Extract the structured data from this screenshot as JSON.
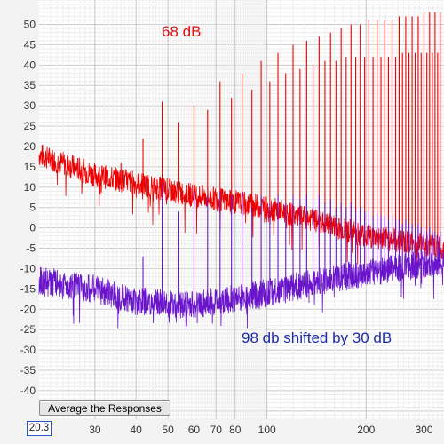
{
  "chart_data": {
    "type": "line",
    "x_scale": "log",
    "xlim": [
      20.3,
      345
    ],
    "ylim": [
      -47,
      56
    ],
    "grid": true,
    "y_ticks": [
      50,
      45,
      40,
      35,
      30,
      25,
      20,
      15,
      10,
      5,
      0,
      -5,
      -10,
      -15,
      -20,
      -25,
      -30,
      -35,
      -40
    ],
    "x_ticks": [
      "30",
      "40",
      "50",
      "60",
      "70",
      "80",
      "100",
      "200",
      "300"
    ],
    "x_tick_values": [
      30,
      40,
      50,
      60,
      70,
      80,
      100,
      200,
      300
    ],
    "x_start_label": "20.3",
    "annotations": {
      "red": "68 dB",
      "blue": "98 db shifted by 30 dB"
    },
    "series": [
      {
        "color": "#ee0000",
        "noise_floor": [
          [
            20.3,
            18
          ],
          [
            30,
            13
          ],
          [
            40,
            11
          ],
          [
            60,
            8
          ],
          [
            100,
            5
          ],
          [
            150,
            1
          ],
          [
            200,
            -2
          ],
          [
            300,
            -4
          ],
          [
            345,
            -5
          ]
        ],
        "peaks": [
          [
            36,
            16
          ],
          [
            42,
            22
          ],
          [
            48,
            31
          ],
          [
            54,
            26
          ],
          [
            60,
            30
          ],
          [
            66,
            29
          ],
          [
            72,
            36
          ],
          [
            78,
            32
          ],
          [
            84,
            38
          ],
          [
            90,
            34
          ],
          [
            96,
            41
          ],
          [
            102,
            36
          ],
          [
            108,
            43
          ],
          [
            114,
            38
          ],
          [
            120,
            45
          ],
          [
            126,
            39
          ],
          [
            132,
            46
          ],
          [
            138,
            40
          ],
          [
            144,
            47
          ],
          [
            150,
            41
          ],
          [
            156,
            48
          ],
          [
            162,
            41
          ],
          [
            168,
            49
          ],
          [
            174,
            42
          ],
          [
            180,
            50
          ],
          [
            186,
            42
          ],
          [
            192,
            50
          ],
          [
            198,
            42
          ],
          [
            204,
            51
          ],
          [
            210,
            42
          ],
          [
            216,
            51
          ],
          [
            222,
            42
          ],
          [
            228,
            51
          ],
          [
            234,
            42
          ],
          [
            240,
            51
          ],
          [
            246,
            42
          ],
          [
            252,
            52
          ],
          [
            258,
            43
          ],
          [
            264,
            52
          ],
          [
            270,
            43
          ],
          [
            276,
            52
          ],
          [
            282,
            43
          ],
          [
            288,
            52
          ],
          [
            294,
            43
          ],
          [
            300,
            53
          ],
          [
            306,
            43
          ],
          [
            312,
            53
          ],
          [
            318,
            43
          ],
          [
            324,
            53
          ],
          [
            330,
            43
          ],
          [
            336,
            53
          ]
        ]
      },
      {
        "color": "#6a14cc",
        "noise_floor": [
          [
            20.3,
            -13
          ],
          [
            30,
            -15
          ],
          [
            40,
            -18
          ],
          [
            60,
            -19
          ],
          [
            100,
            -16
          ],
          [
            150,
            -13
          ],
          [
            200,
            -11
          ],
          [
            300,
            -9
          ],
          [
            345,
            -8
          ]
        ],
        "peaks": [
          [
            42,
            -7
          ],
          [
            48,
            11
          ],
          [
            54,
            4
          ],
          [
            60,
            9
          ],
          [
            66,
            8
          ],
          [
            72,
            9
          ],
          [
            78,
            8
          ],
          [
            84,
            9
          ],
          [
            90,
            5
          ],
          [
            96,
            8
          ],
          [
            102,
            6
          ],
          [
            108,
            8
          ],
          [
            114,
            6
          ],
          [
            120,
            8
          ],
          [
            126,
            7
          ],
          [
            132,
            8
          ],
          [
            138,
            7
          ],
          [
            144,
            8
          ],
          [
            150,
            6
          ],
          [
            156,
            7
          ],
          [
            162,
            5
          ],
          [
            168,
            6
          ],
          [
            174,
            5
          ],
          [
            180,
            6
          ],
          [
            186,
            4
          ],
          [
            192,
            5
          ],
          [
            198,
            4
          ],
          [
            204,
            4
          ],
          [
            210,
            3
          ],
          [
            216,
            4
          ],
          [
            222,
            3
          ],
          [
            228,
            3
          ],
          [
            234,
            2
          ],
          [
            240,
            3
          ],
          [
            246,
            2
          ],
          [
            252,
            2
          ],
          [
            258,
            1
          ],
          [
            264,
            2
          ],
          [
            270,
            1
          ],
          [
            276,
            1
          ],
          [
            282,
            0
          ],
          [
            288,
            1
          ],
          [
            294,
            0
          ],
          [
            300,
            0
          ],
          [
            306,
            -1
          ],
          [
            312,
            0
          ],
          [
            318,
            -1
          ],
          [
            324,
            -1
          ],
          [
            330,
            -2
          ],
          [
            336,
            -1
          ]
        ]
      }
    ]
  },
  "controls": {
    "average_button": "Average the Responses"
  }
}
